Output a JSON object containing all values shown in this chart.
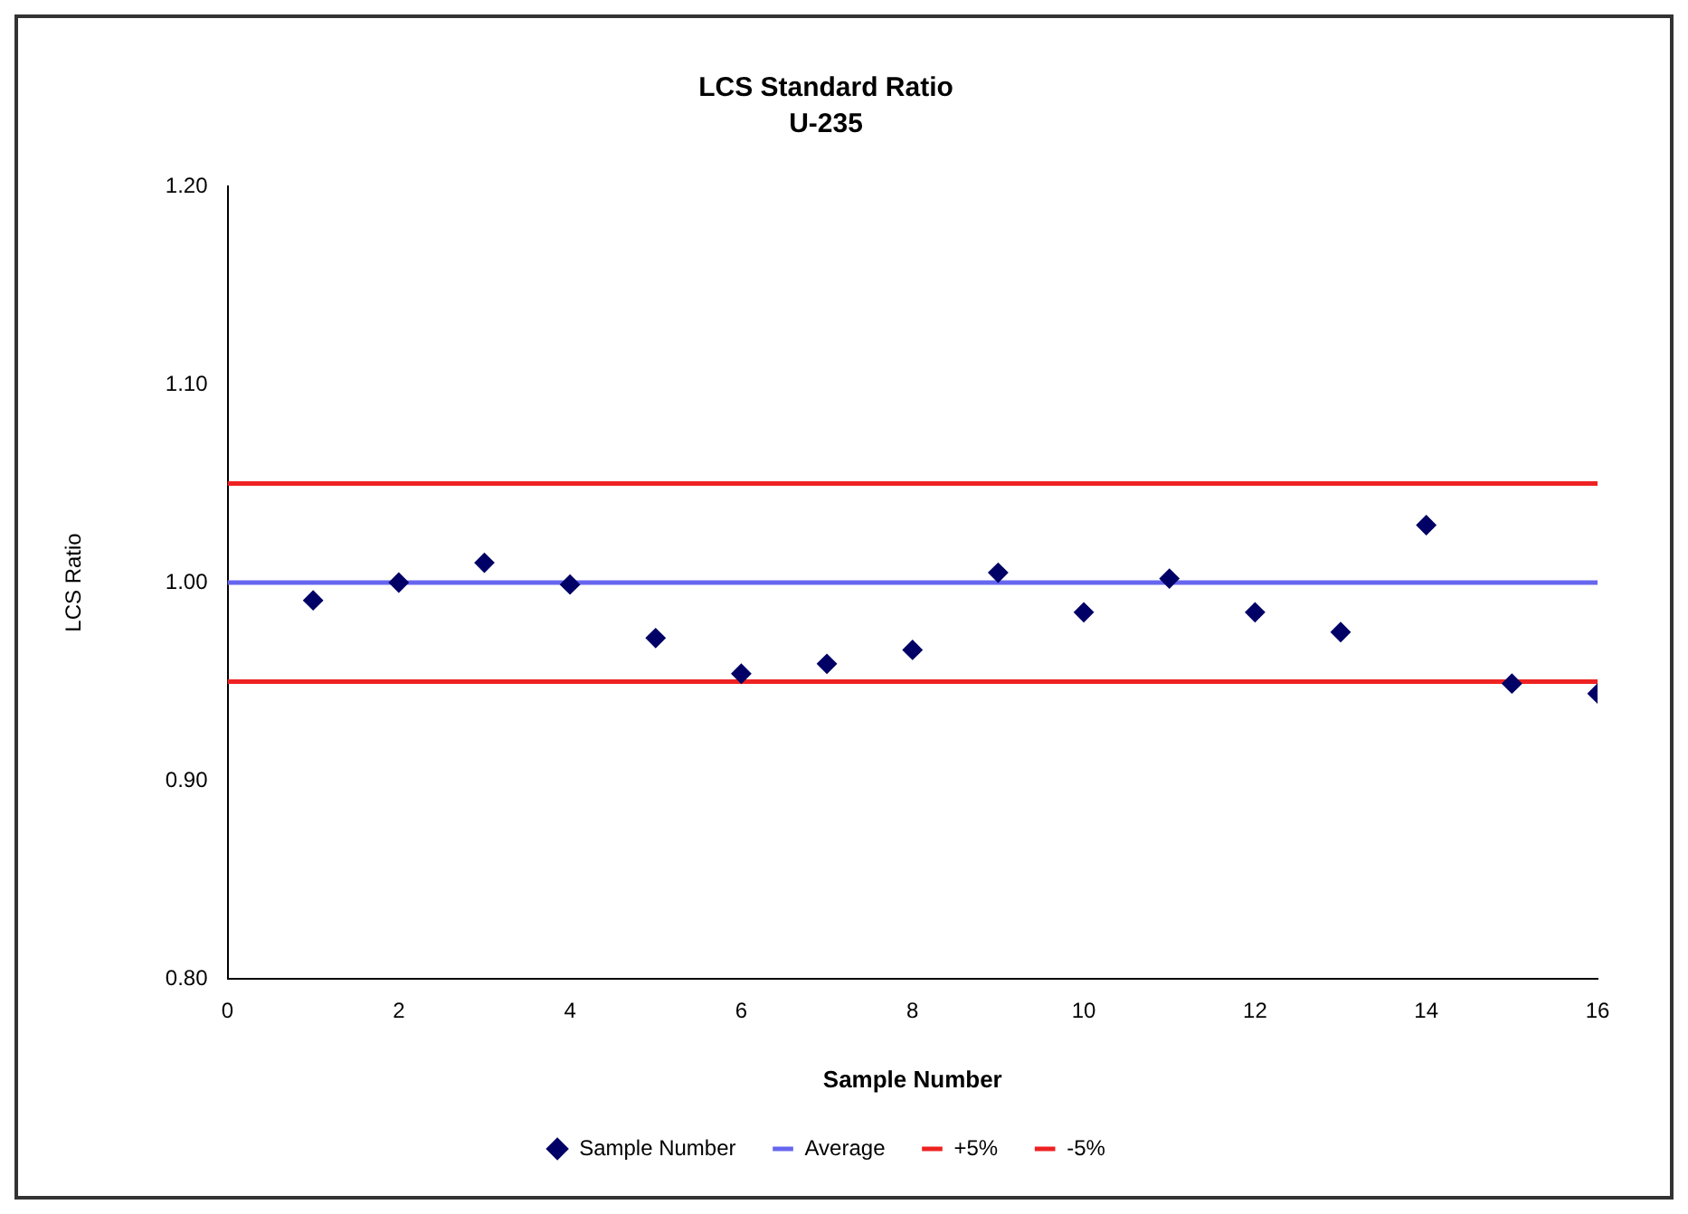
{
  "chart_data": {
    "type": "scatter",
    "title": "LCS Standard Ratio",
    "subtitle": "U-235",
    "xlabel": "Sample Number",
    "ylabel": "LCS Ratio",
    "xlim": [
      0,
      16
    ],
    "xticks": [
      0,
      2,
      4,
      6,
      8,
      10,
      12,
      14,
      16
    ],
    "ylim": [
      0.8,
      1.2
    ],
    "yticks": [
      {
        "value": 0.8,
        "label": "0.80"
      },
      {
        "value": 0.9,
        "label": "0.90"
      },
      {
        "value": 1.0,
        "label": "1.00"
      },
      {
        "value": 1.1,
        "label": "1.10"
      },
      {
        "value": 1.2,
        "label": "1.20"
      }
    ],
    "grid": false,
    "legend": "bottom",
    "series": [
      {
        "name": "Sample Number",
        "marker": "diamond",
        "color": "#000066",
        "x": [
          1,
          2,
          3,
          4,
          5,
          6,
          7,
          8,
          9,
          10,
          11,
          12,
          13,
          14,
          15,
          16
        ],
        "values": [
          0.991,
          1.0,
          1.01,
          0.999,
          0.972,
          0.954,
          0.959,
          0.966,
          1.005,
          0.985,
          1.002,
          0.985,
          0.975,
          1.029,
          0.949,
          0.944
        ]
      },
      {
        "name": "Average",
        "type": "line",
        "marker": "none",
        "color": "#6666ee",
        "x": [
          0,
          16
        ],
        "values": [
          1.0,
          1.0
        ]
      },
      {
        "name": "+5%",
        "type": "line",
        "marker": "none",
        "color": "#ee2222",
        "x": [
          0,
          16
        ],
        "values": [
          1.05,
          1.05
        ]
      },
      {
        "name": "-5%",
        "type": "line",
        "marker": "none",
        "color": "#ee2222",
        "x": [
          0,
          16
        ],
        "values": [
          0.95,
          0.95
        ]
      }
    ]
  }
}
